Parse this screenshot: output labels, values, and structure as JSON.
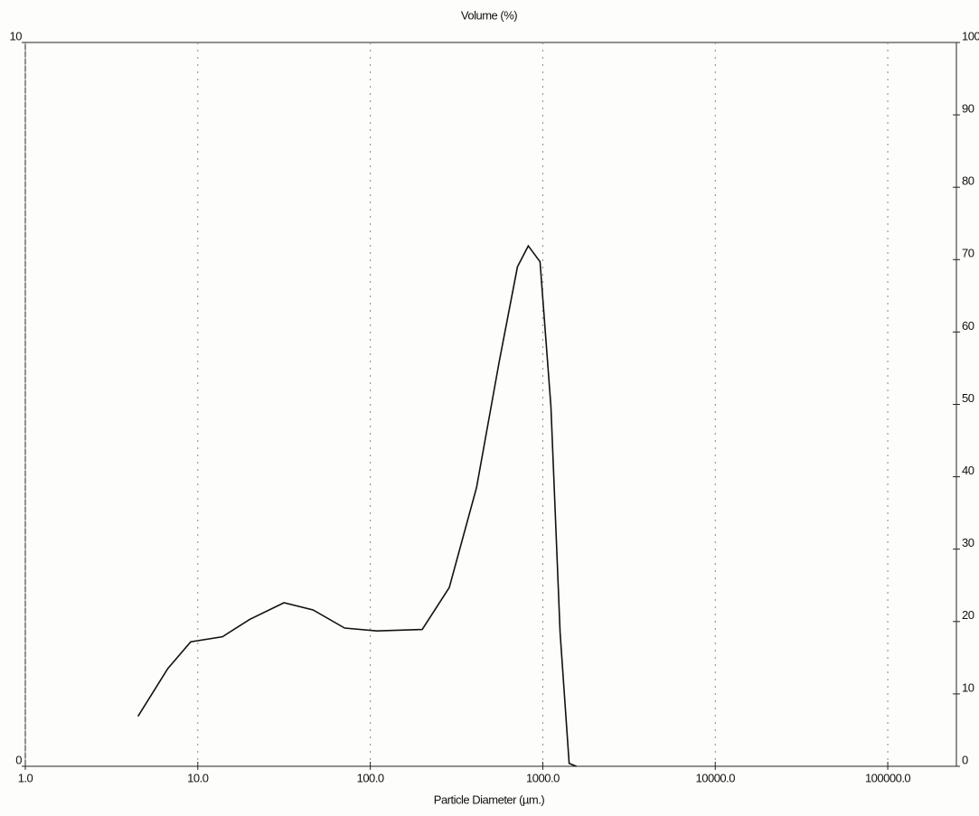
{
  "chart_data": {
    "type": "line",
    "title": "Volume (%)",
    "x_label": "Particle Diameter (µm.)",
    "x_scale": "log",
    "grid": true,
    "xlim": [
      1,
      250000
    ],
    "xticks": [
      {
        "value": 1,
        "label": "1.0"
      },
      {
        "value": 10,
        "label": "10.0"
      },
      {
        "value": 100,
        "label": "100.0"
      },
      {
        "value": 1000,
        "label": "1000.0"
      },
      {
        "value": 10000,
        "label": "10000.0"
      },
      {
        "value": 100000,
        "label": "100000.0"
      }
    ],
    "ylim": [
      0,
      10
    ],
    "yticks": [
      0,
      10
    ],
    "y2lim": [
      0,
      100
    ],
    "y2ticks": [
      0,
      10,
      20,
      30,
      40,
      50,
      60,
      70,
      80,
      90,
      100
    ],
    "series": [
      {
        "color": "#111111",
        "x": [
          4.5,
          6.7,
          9.1,
          13.9,
          20,
          31.6,
          46.6,
          71,
          109,
          200,
          287,
          413,
          559,
          713,
          824,
          964,
          1115,
          1260,
          1422,
          1567
        ],
        "values": [
          0.69,
          1.35,
          1.72,
          1.79,
          2.03,
          2.26,
          2.16,
          1.91,
          1.87,
          1.89,
          2.47,
          3.85,
          5.59,
          6.9,
          7.19,
          6.97,
          4.97,
          1.85,
          0.04,
          0
        ]
      }
    ]
  }
}
